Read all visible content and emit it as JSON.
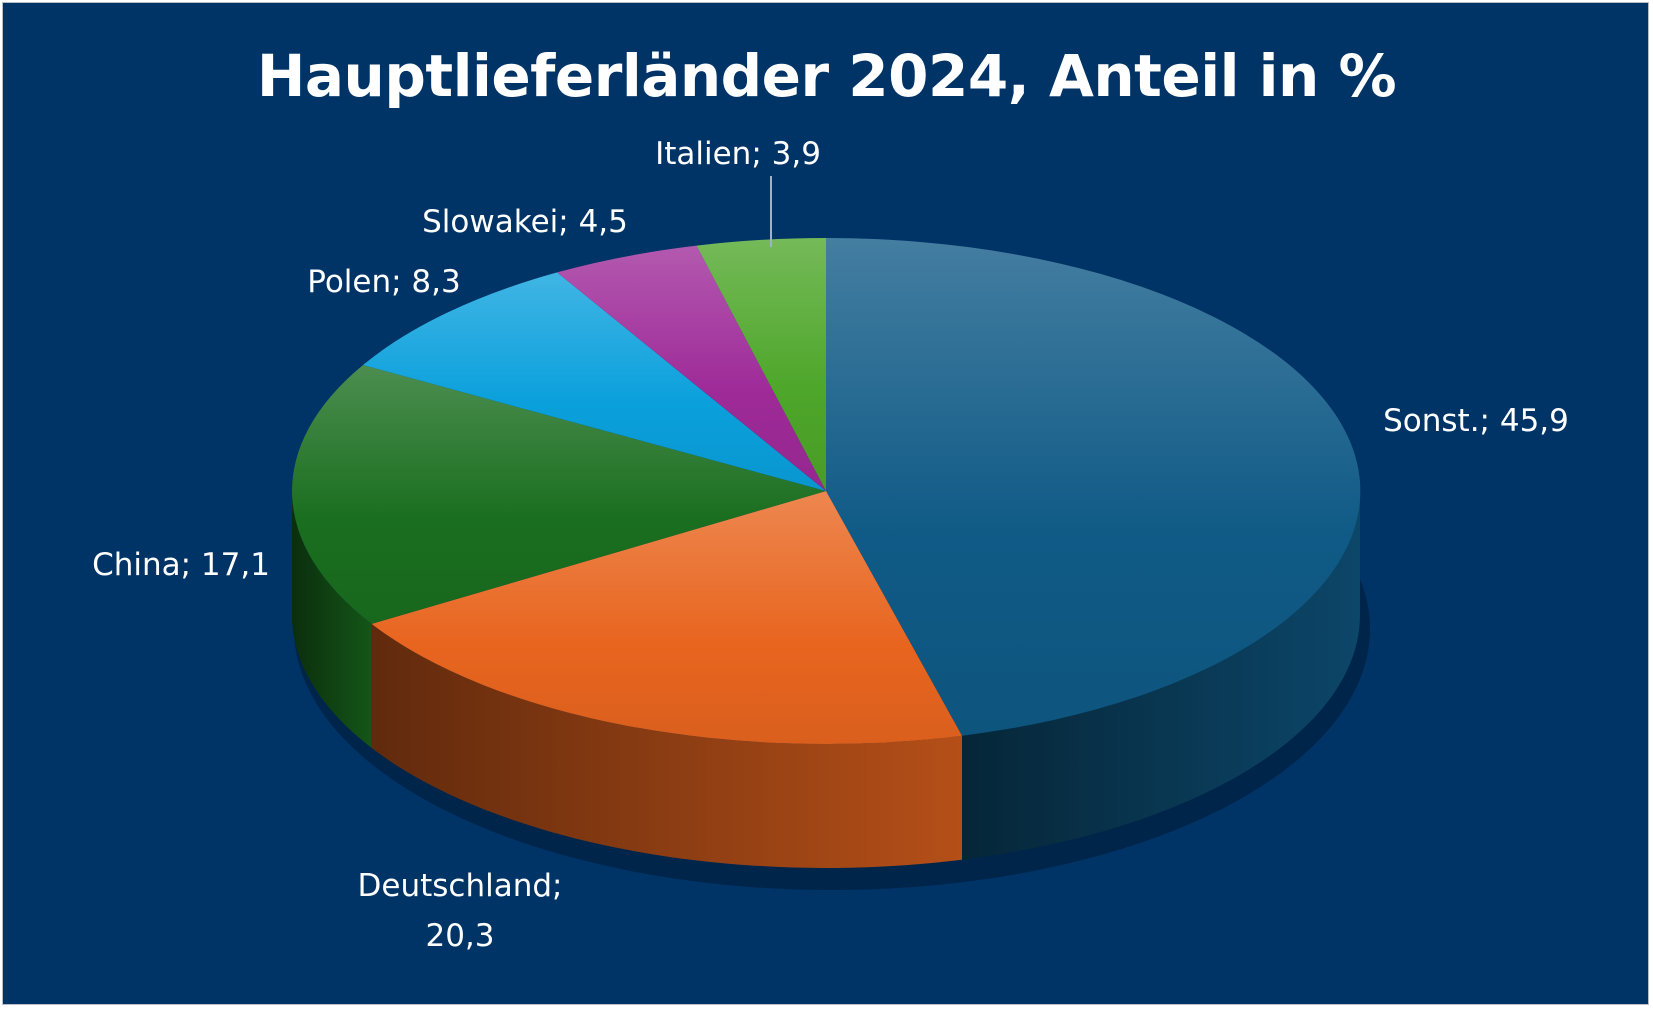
{
  "chart_data": {
    "type": "pie",
    "title": "Hauptlieferländer 2024, Anteil in %",
    "style": "3d",
    "slices": [
      {
        "label": "Sonst.",
        "value": 45.9,
        "display": "Sonst.; 45,9",
        "color": "#0f5a86"
      },
      {
        "label": "Deutschland",
        "value": 20.3,
        "display": [
          "Deutschland;",
          "20,3"
        ],
        "color": "#e8651f"
      },
      {
        "label": "China",
        "value": 17.1,
        "display": "China; 17,1",
        "color": "#1a6e1f"
      },
      {
        "label": "Polen",
        "value": 8.3,
        "display": "Polen; 8,3",
        "color": "#0aa0dc"
      },
      {
        "label": "Slowakei",
        "value": 4.5,
        "display": "Slowakei; 4,5",
        "color": "#9e2a98"
      },
      {
        "label": "Italien",
        "value": 3.9,
        "display": "Italien; 3,9",
        "color": "#4ea62a"
      }
    ],
    "colors": {
      "background": "#003366",
      "title": "#ffffff",
      "labels": "#ffffff"
    }
  }
}
